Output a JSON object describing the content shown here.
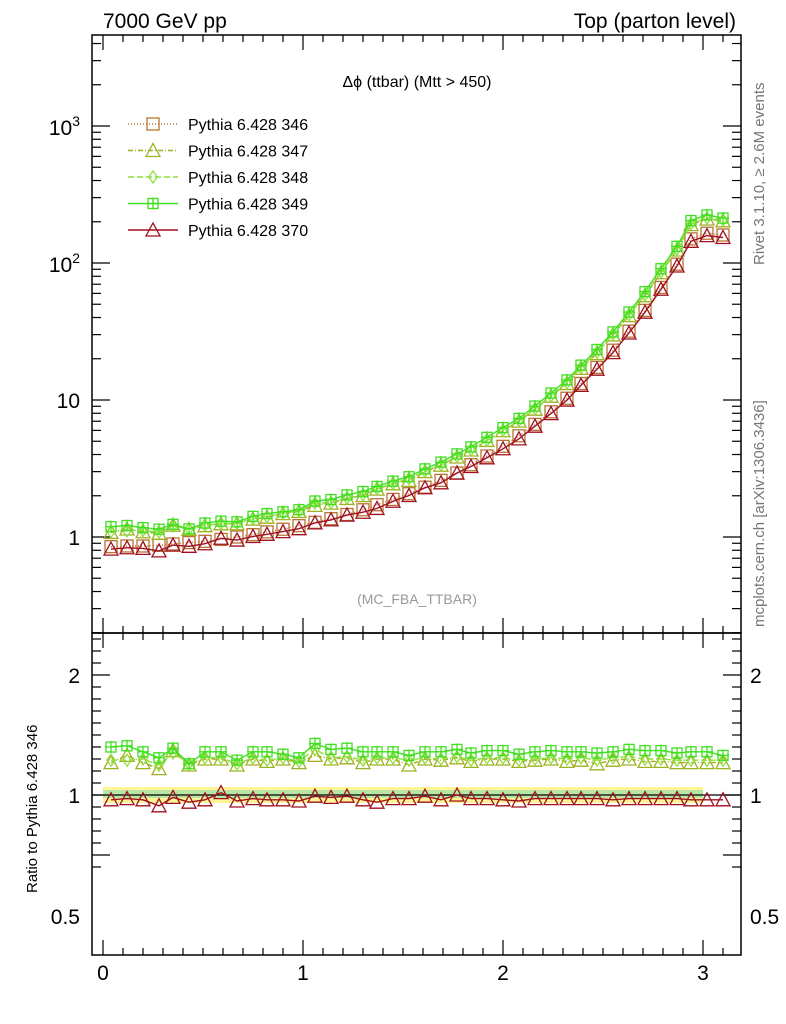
{
  "header": {
    "left": "7000 GeV pp",
    "right": "Top (parton level)"
  },
  "side": {
    "rivet": "Rivet 3.1.10, ≥ 2.6M events",
    "mcplots": "mcplots.cern.ch [arXiv:1306.3436]"
  },
  "chart_data": {
    "type": "line",
    "title": "Δϕ (ttbar) (Mtt > 450)",
    "analysis": "(MC_FBA_TTBAR)",
    "xlabel": "",
    "ylabel": "",
    "ratio_ylabel": "Ratio to Pythia 6.428 346",
    "xlim": [
      -0.06,
      3.2
    ],
    "ylim": [
      0.22,
      4500
    ],
    "yscale": "log",
    "ratio_ylim": [
      0.35,
      2.4
    ],
    "x_ticks": [
      "0",
      "1",
      "2",
      "3"
    ],
    "y_ticks": [
      "1",
      "10",
      "10²",
      "10³"
    ],
    "ratio_y_ticks": [
      "0.5",
      "1",
      "2"
    ],
    "legend_position": "top-left",
    "series": [
      {
        "name": "Pythia 6.428 346",
        "color": "#b87333",
        "marker": "square",
        "dash": "1,2",
        "ratio": [
          1.0,
          1.0,
          1.0,
          1.0,
          1.0,
          1.0,
          1.0,
          1.0,
          1.0,
          1.0,
          1.0,
          1.0,
          1.0,
          1.0,
          1.0,
          1.0,
          1.0,
          1.0,
          1.0,
          1.0,
          1.0,
          1.0,
          1.0,
          1.0,
          1.0,
          1.0,
          1.0,
          1.0,
          1.0,
          1.0,
          1.0,
          1.0,
          1.0,
          1.0,
          1.0,
          1.0,
          1.0,
          1.0,
          1.0,
          1.0
        ]
      },
      {
        "name": "Pythia 6.428 347",
        "color": "#a0b020",
        "marker": "triangle",
        "dash": "5,2,1,2",
        "ratio": [
          1.27,
          1.33,
          1.27,
          1.22,
          1.37,
          1.25,
          1.3,
          1.3,
          1.25,
          1.3,
          1.28,
          1.3,
          1.27,
          1.33,
          1.3,
          1.31,
          1.27,
          1.3,
          1.3,
          1.25,
          1.3,
          1.29,
          1.31,
          1.28,
          1.3,
          1.3,
          1.28,
          1.29,
          1.3,
          1.28,
          1.29,
          1.26,
          1.29,
          1.3,
          1.28,
          1.28,
          1.27,
          1.27,
          1.27,
          1.27
        ]
      },
      {
        "name": "Pythia 6.428 348",
        "color": "#90e040",
        "marker": "diamond",
        "dash": "6,3",
        "ratio": [
          1.29,
          1.29,
          1.3,
          1.25,
          1.35,
          1.26,
          1.31,
          1.31,
          1.26,
          1.31,
          1.29,
          1.31,
          1.28,
          1.38,
          1.31,
          1.32,
          1.29,
          1.31,
          1.31,
          1.29,
          1.31,
          1.3,
          1.32,
          1.29,
          1.31,
          1.31,
          1.29,
          1.3,
          1.31,
          1.3,
          1.31,
          1.29,
          1.31,
          1.32,
          1.3,
          1.3,
          1.29,
          1.29,
          1.29,
          1.29
        ]
      },
      {
        "name": "Pythia 6.428 349",
        "color": "#40e020",
        "marker": "cross",
        "dash": "",
        "ratio": [
          1.4,
          1.41,
          1.36,
          1.31,
          1.39,
          1.26,
          1.36,
          1.36,
          1.29,
          1.36,
          1.36,
          1.34,
          1.31,
          1.43,
          1.38,
          1.39,
          1.36,
          1.36,
          1.36,
          1.33,
          1.36,
          1.36,
          1.38,
          1.35,
          1.37,
          1.37,
          1.34,
          1.36,
          1.37,
          1.36,
          1.36,
          1.35,
          1.36,
          1.38,
          1.37,
          1.37,
          1.35,
          1.36,
          1.36,
          1.33
        ]
      },
      {
        "name": "Pythia 6.428 370",
        "color": "#a01020",
        "marker": "triangle",
        "dash": "",
        "ratio": [
          0.96,
          0.97,
          0.96,
          0.91,
          0.98,
          0.94,
          0.96,
          1.02,
          0.95,
          0.97,
          0.96,
          0.96,
          0.95,
          0.99,
          0.98,
          0.99,
          0.96,
          0.94,
          0.97,
          0.97,
          0.99,
          0.96,
          1.0,
          0.97,
          0.97,
          0.96,
          0.95,
          0.97,
          0.97,
          0.97,
          0.97,
          0.97,
          0.96,
          0.97,
          0.97,
          0.97,
          0.97,
          0.96,
          0.96,
          0.96
        ]
      }
    ],
    "reference": {
      "name": "Pythia 6.428 346",
      "x": [
        0.04,
        0.12,
        0.2,
        0.28,
        0.35,
        0.43,
        0.51,
        0.59,
        0.67,
        0.75,
        0.82,
        0.9,
        0.98,
        1.06,
        1.14,
        1.22,
        1.3,
        1.37,
        1.45,
        1.53,
        1.61,
        1.69,
        1.77,
        1.84,
        1.92,
        2.0,
        2.08,
        2.16,
        2.24,
        2.32,
        2.39,
        2.47,
        2.55,
        2.63,
        2.71,
        2.79,
        2.87,
        2.94,
        3.02,
        3.1
      ],
      "values": [
        0.85,
        0.86,
        0.86,
        0.87,
        0.89,
        0.91,
        0.93,
        0.96,
        1.0,
        1.04,
        1.09,
        1.14,
        1.21,
        1.28,
        1.36,
        1.46,
        1.58,
        1.72,
        1.88,
        2.07,
        2.31,
        2.59,
        2.93,
        3.37,
        3.9,
        4.59,
        5.48,
        6.64,
        8.2,
        10.3,
        13.2,
        17.3,
        23.1,
        31.8,
        45.1,
        66.3,
        98.0,
        150.0,
        165.0,
        160.0
      ]
    }
  }
}
